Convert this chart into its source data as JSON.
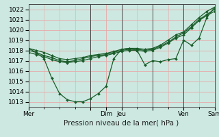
{
  "bg_color": "#cce8e0",
  "grid_color": "#e8a8a8",
  "line_color": "#1a5c2a",
  "ylim": [
    1012.5,
    1022.5
  ],
  "yticks": [
    1013,
    1014,
    1015,
    1016,
    1017,
    1018,
    1019,
    1020,
    1021,
    1022
  ],
  "xlabel": "Pression niveau de la mer( hPa )",
  "xlabel_fontsize": 7.5,
  "tick_fontsize": 6.5,
  "xmax": 24,
  "day_positions": [
    0,
    8,
    10,
    12,
    16,
    20,
    24
  ],
  "day_labels": [
    "Mer",
    "",
    "Dim",
    "Jeu",
    "",
    "Ven",
    "Sam"
  ],
  "vlines": [
    0,
    8,
    12,
    16,
    20,
    24
  ],
  "lines": [
    {
      "x": [
        0,
        1,
        2,
        3,
        4,
        5,
        6,
        7,
        8,
        9,
        10,
        11,
        12,
        13,
        14,
        15,
        16,
        17,
        18,
        19,
        20,
        21,
        22,
        23,
        24
      ],
      "y": [
        1018.2,
        1018.0,
        1017.8,
        1017.5,
        1017.2,
        1017.1,
        1017.2,
        1017.3,
        1017.5,
        1017.6,
        1017.7,
        1017.9,
        1018.1,
        1018.2,
        1018.2,
        1018.1,
        1018.2,
        1018.5,
        1019.0,
        1019.5,
        1019.8,
        1020.5,
        1021.2,
        1021.8,
        1022.2
      ]
    },
    {
      "x": [
        0,
        1,
        2,
        3,
        4,
        5,
        6,
        7,
        8,
        9,
        10,
        11,
        12,
        13,
        14,
        15,
        16,
        17,
        18,
        19,
        20,
        21,
        22,
        23,
        24
      ],
      "y": [
        1018.0,
        1017.8,
        1017.5,
        1017.3,
        1017.0,
        1016.9,
        1017.0,
        1017.2,
        1017.4,
        1017.5,
        1017.6,
        1017.8,
        1018.0,
        1018.1,
        1018.1,
        1018.0,
        1018.1,
        1018.4,
        1018.8,
        1019.3,
        1019.7,
        1020.3,
        1021.0,
        1021.5,
        1022.0
      ]
    },
    {
      "x": [
        0,
        1,
        2,
        3,
        4,
        5,
        6,
        7,
        8,
        9,
        10,
        11,
        12,
        13,
        14,
        15,
        16,
        17,
        18,
        19,
        20,
        21,
        22,
        23,
        24
      ],
      "y": [
        1017.8,
        1017.6,
        1017.4,
        1017.1,
        1016.9,
        1016.8,
        1016.9,
        1017.0,
        1017.2,
        1017.4,
        1017.5,
        1017.7,
        1017.9,
        1018.0,
        1018.0,
        1017.9,
        1018.0,
        1018.3,
        1018.7,
        1019.2,
        1019.5,
        1020.2,
        1020.9,
        1021.4,
        1021.8
      ]
    },
    {
      "x": [
        0,
        1,
        2,
        3,
        4,
        5,
        6,
        7,
        8,
        9,
        10,
        11,
        12,
        13,
        14,
        15,
        16,
        17,
        18,
        19,
        20,
        21,
        22,
        23,
        24
      ],
      "y": [
        1018.2,
        1017.8,
        1017.2,
        1015.3,
        1013.8,
        1013.2,
        1013.0,
        1013.0,
        1013.3,
        1013.8,
        1014.5,
        1017.2,
        1018.1,
        1018.2,
        1018.0,
        1016.6,
        1017.0,
        1016.9,
        1017.1,
        1017.2,
        1019.0,
        1018.5,
        1019.2,
        1021.2,
        1022.2
      ]
    }
  ]
}
